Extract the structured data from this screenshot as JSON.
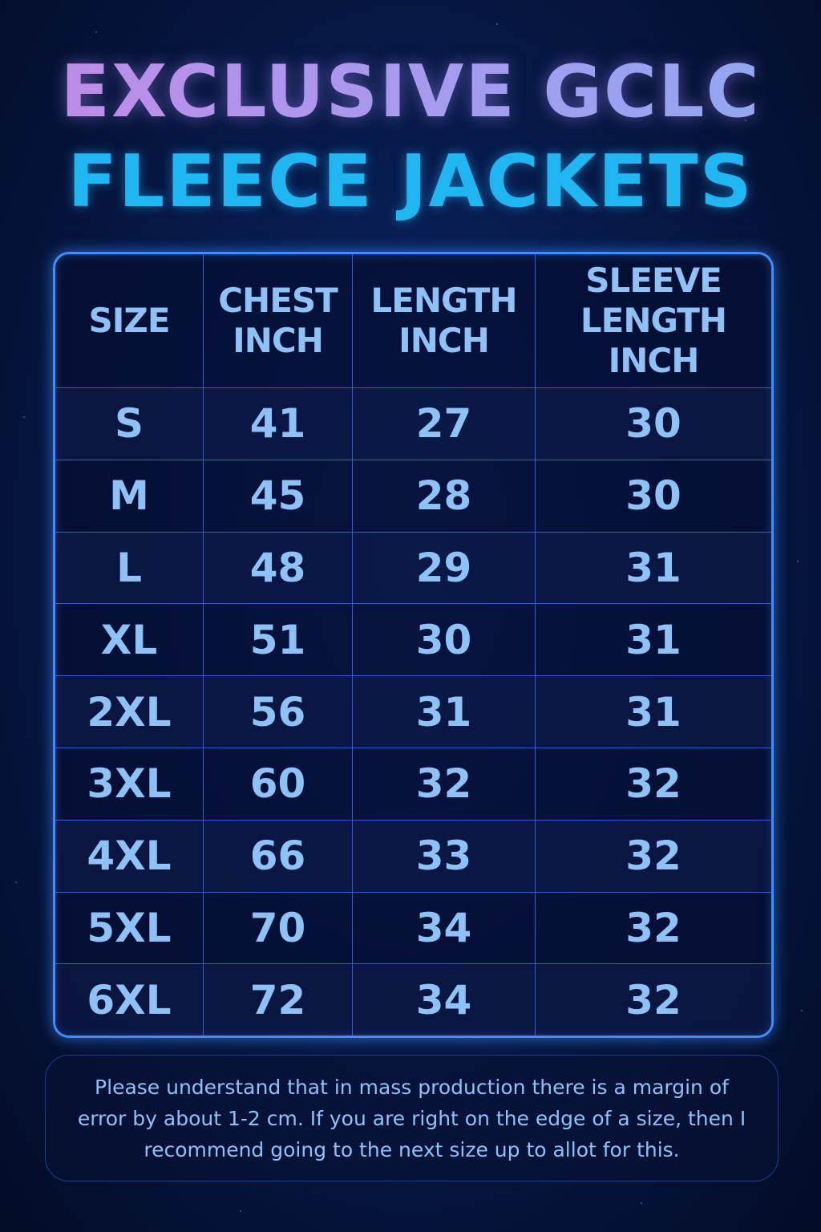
{
  "title": {
    "line1": "EXCLUSIVE GCLC",
    "line2": "FLEECE JACKETS"
  },
  "table": {
    "headers": [
      "SIZE",
      "CHEST INCH",
      "LENGTH INCH",
      "SLEEVE LENGTH INCH"
    ],
    "rows": [
      [
        "S",
        "41",
        "27",
        "30"
      ],
      [
        "M",
        "45",
        "28",
        "30"
      ],
      [
        "L",
        "48",
        "29",
        "31"
      ],
      [
        "XL",
        "51",
        "30",
        "31"
      ],
      [
        "2XL",
        "56",
        "31",
        "31"
      ],
      [
        "3XL",
        "60",
        "32",
        "32"
      ],
      [
        "4XL",
        "66",
        "33",
        "32"
      ],
      [
        "5XL",
        "70",
        "34",
        "32"
      ],
      [
        "6XL",
        "72",
        "34",
        "32"
      ]
    ]
  },
  "note": "Please understand that in mass production there is a margin of error by about 1-2 cm. If you are right on the edge of a size, then I recommend going to the next size up to allot for this.",
  "colors": {
    "title_top": "#b08ae8",
    "title_bottom": "#1fb6f2",
    "table_border": "#3f8cff",
    "text": "#8ec2f7",
    "background": "#071a4a"
  }
}
